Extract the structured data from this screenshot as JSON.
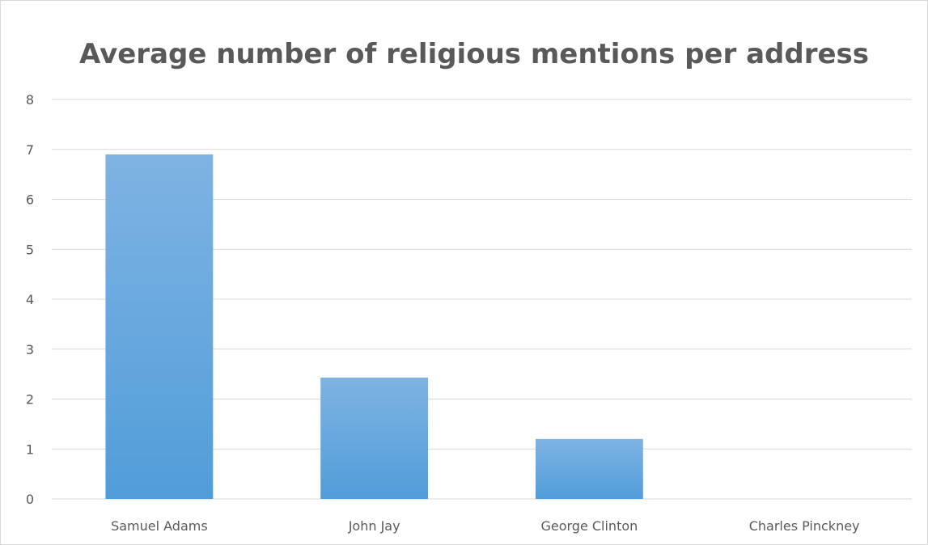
{
  "chart_data": {
    "type": "bar",
    "title": "Average number of religious mentions per address",
    "xlabel": "",
    "ylabel": "",
    "categories": [
      "Samuel Adams",
      "John Jay",
      "George Clinton",
      "Charles Pinckney"
    ],
    "values": [
      6.9,
      2.43,
      1.2,
      0
    ],
    "ylim": [
      0,
      8
    ],
    "yticks": [
      0,
      1,
      2,
      3,
      4,
      5,
      6,
      7,
      8
    ],
    "grid": true,
    "legend": "none",
    "colors": {
      "bar_top": "#7fb3e3",
      "bar_bottom": "#519dd9",
      "grid": "#d9d9d9",
      "text": "#595959"
    }
  }
}
